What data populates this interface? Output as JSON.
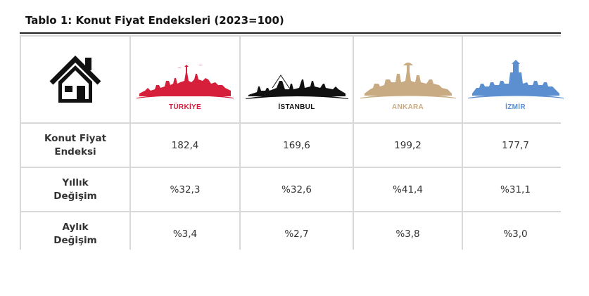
{
  "title": "Tablo 1: Konut Fiyat Endeksleri (2023=100)",
  "colors": {
    "turkiye": "#d51f3b",
    "istanbul": "#111111",
    "ankara": "#c9ab83",
    "izmir": "#5b8fcf",
    "grid": "#d8d8d8"
  },
  "header": {
    "icon": "house-icon",
    "cities": [
      {
        "name": "TÜRKİYE",
        "icon": "turkiye-skyline-icon"
      },
      {
        "name": "İSTANBUL",
        "icon": "istanbul-skyline-icon"
      },
      {
        "name": "ANKARA",
        "icon": "ankara-skyline-icon"
      },
      {
        "name": "İZMİR",
        "icon": "izmir-skyline-icon"
      }
    ]
  },
  "rows": [
    {
      "label_line1": "Konut Fiyat",
      "label_line2": "Endeksi",
      "values": [
        "182,4",
        "169,6",
        "199,2",
        "177,7"
      ]
    },
    {
      "label_line1": "Yıllık",
      "label_line2": "Değişim",
      "values": [
        "%32,3",
        "%32,6",
        "%41,4",
        "%31,1"
      ]
    },
    {
      "label_line1": "Aylık",
      "label_line2": "Değişim",
      "values": [
        "%3,4",
        "%2,7",
        "%3,8",
        "%3,0"
      ]
    }
  ]
}
